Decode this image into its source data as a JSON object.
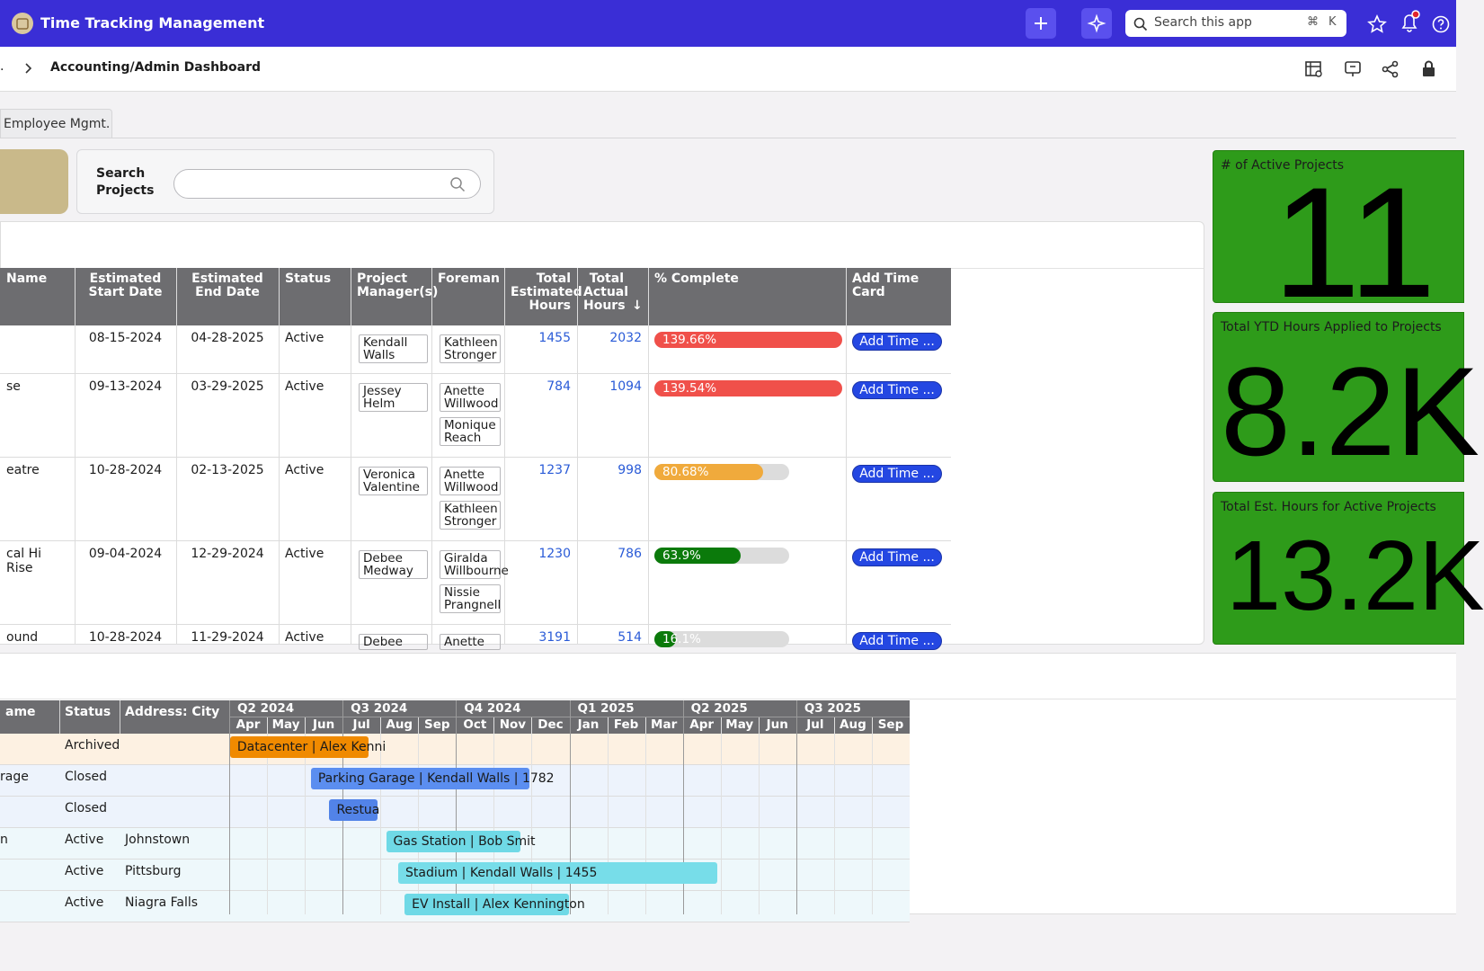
{
  "header": {
    "title": "Time Tracking Management",
    "search_placeholder": "Search this app",
    "shortcut": [
      "⌘",
      "K"
    ]
  },
  "breadcrumb": {
    "ellipsis": ".",
    "current": "Accounting/Admin Dashboard"
  },
  "tabs": [
    "Employee Mgmt."
  ],
  "search": {
    "label": "Search Projects"
  },
  "table": {
    "columns": [
      "Name",
      "Estimated Start Date",
      "Estimated End Date",
      "Status",
      "Project Manager(s)",
      "Foreman",
      "Total Estimated Hours",
      "Total Actual Hours",
      "% Complete",
      "Add Time Card"
    ],
    "add_time_label": "Add Time ...",
    "rows": [
      {
        "start": "08-15-2024",
        "end": "04-28-2025",
        "status": "Active",
        "managers": [
          "Kendall Walls"
        ],
        "foremen": [
          "Kathleen Stronger"
        ],
        "est_hours": "1455",
        "actual_hours": "2032",
        "complete": {
          "value": 139.66,
          "label": "139.66%"
        },
        "complete_color": "#f0504a"
      },
      {
        "name": "se",
        "start": "09-13-2024",
        "end": "03-29-2025",
        "status": "Active",
        "managers": [
          "Jessey Helm"
        ],
        "foremen": [
          "Anette Willwood",
          "Monique Reach"
        ],
        "est_hours": "784",
        "actual_hours": "1094",
        "complete": {
          "value": 139.54,
          "label": "139.54%"
        },
        "complete_color": "#f0504a"
      },
      {
        "name": "eatre",
        "start": "10-28-2024",
        "end": "02-13-2025",
        "status": "Active",
        "managers": [
          "Veronica Valentine"
        ],
        "foremen": [
          "Anette Willwood",
          "Kathleen Stronger"
        ],
        "est_hours": "1237",
        "actual_hours": "998",
        "complete": {
          "value": 80.68,
          "label": "80.68%"
        },
        "complete_color": "#f0aa3c"
      },
      {
        "name": "cal Hi Rise",
        "start": "09-04-2024",
        "end": "12-29-2024",
        "status": "Active",
        "managers": [
          "Debee Medway"
        ],
        "foremen": [
          "Giralda Willbourne",
          "Nissie Prangnell"
        ],
        "est_hours": "1230",
        "actual_hours": "786",
        "complete": {
          "value": 63.9,
          "label": "63.9%"
        },
        "complete_color": "#0b7a0b"
      },
      {
        "name": "ound",
        "start": "10-28-2024",
        "end": "11-29-2024",
        "status": "Active",
        "managers": [
          "Debee"
        ],
        "foremen": [
          "Anette"
        ],
        "est_hours": "3191",
        "actual_hours": "514",
        "complete": {
          "value": 16.1,
          "label": "16.1%"
        },
        "complete_color": "#0b7a0b"
      }
    ]
  },
  "kpis": [
    {
      "label": "# of Active Projects",
      "value": "11"
    },
    {
      "label": "Total YTD Hours Applied to Projects",
      "value": "8.2K"
    },
    {
      "label": "Total Est. Hours for Active Projects",
      "value": "13.2K"
    }
  ],
  "gantt": {
    "columns": [
      "ame",
      "Status",
      "Address: City"
    ],
    "quarters": [
      "Q2 2024",
      "Q3 2024",
      "Q4 2024",
      "Q1 2025",
      "Q2 2025",
      "Q3 2025"
    ],
    "months": [
      "Apr",
      "May",
      "Jun",
      "Jul",
      "Aug",
      "Sep",
      "Oct",
      "Nov",
      "Dec",
      "Jan",
      "Feb",
      "Mar",
      "Apr",
      "May",
      "Jun",
      "Jul",
      "Aug",
      "Sep"
    ],
    "rows": [
      {
        "status": "Archived",
        "row_color": "#fdf1e2",
        "bar": {
          "label": "Datacenter | Alex Kenni",
          "color": "#f08a00"
        }
      },
      {
        "name": "rage",
        "status": "Closed",
        "row_color": "#edf3fc",
        "bar": {
          "label": "Parking Garage | Kendall Walls | 1782",
          "color": "#5b8ef0"
        }
      },
      {
        "status": "Closed",
        "row_color": "#edf3fc",
        "bar": {
          "label": "Restua",
          "color": "#5283e8"
        }
      },
      {
        "name": "n",
        "status": "Active",
        "city": "Johnstown",
        "row_color": "#eef8fb",
        "bar": {
          "label": "Gas Station | Bob Smit",
          "color": "#6fd9e6"
        }
      },
      {
        "status": "Active",
        "city": "Pittsburg",
        "row_color": "#eef8fb",
        "bar": {
          "label": "Stadium | Kendall Walls | 1455",
          "color": "#77dde9"
        }
      },
      {
        "status": "Active",
        "city": "Niagra Falls",
        "row_color": "#eef8fb",
        "bar": {
          "label": "EV Install | Alex Kennington",
          "color": "#6fd9e6"
        }
      }
    ]
  }
}
